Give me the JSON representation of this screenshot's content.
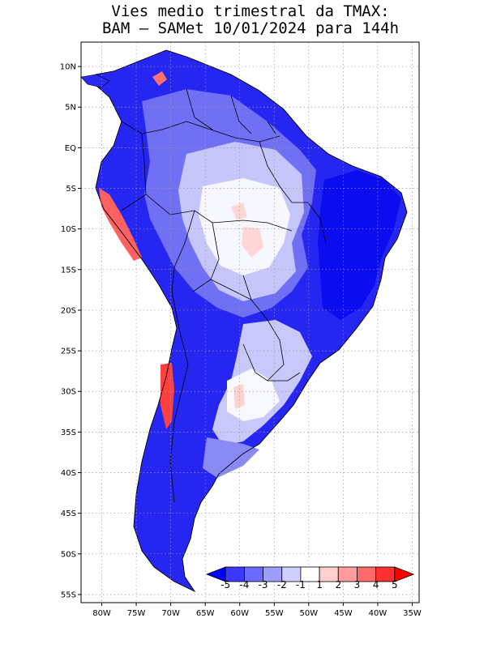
{
  "title": {
    "line1": "Vies medio trimestral da TMAX:",
    "line2": "BAM – SAMet 10/01/2024  para 144h"
  },
  "map": {
    "region": "South America",
    "projection": "lon-lat",
    "lon_range": [
      -83,
      -34
    ],
    "lat_range": [
      -56,
      13
    ],
    "lat_ticks": [
      {
        "value": 10,
        "label": "10N"
      },
      {
        "value": 5,
        "label": "5N"
      },
      {
        "value": 0,
        "label": "EQ"
      },
      {
        "value": -5,
        "label": "5S"
      },
      {
        "value": -10,
        "label": "10S"
      },
      {
        "value": -15,
        "label": "15S"
      },
      {
        "value": -20,
        "label": "20S"
      },
      {
        "value": -25,
        "label": "25S"
      },
      {
        "value": -30,
        "label": "30S"
      },
      {
        "value": -35,
        "label": "35S"
      },
      {
        "value": -40,
        "label": "40S"
      },
      {
        "value": -45,
        "label": "45S"
      },
      {
        "value": -50,
        "label": "50S"
      },
      {
        "value": -55,
        "label": "55S"
      }
    ],
    "lon_ticks": [
      {
        "value": -80,
        "label": "80W"
      },
      {
        "value": -75,
        "label": "75W"
      },
      {
        "value": -70,
        "label": "70W"
      },
      {
        "value": -65,
        "label": "65W"
      },
      {
        "value": -60,
        "label": "60W"
      },
      {
        "value": -55,
        "label": "55W"
      },
      {
        "value": -50,
        "label": "50W"
      },
      {
        "value": -45,
        "label": "45W"
      },
      {
        "value": -40,
        "label": "40W"
      },
      {
        "value": -35,
        "label": "35W"
      }
    ],
    "grid": true
  },
  "colorbar": {
    "labels": [
      "-5",
      "-4",
      "-3",
      "-2",
      "-1",
      "1",
      "2",
      "3",
      "4",
      "5"
    ],
    "colors": [
      "#0000ff",
      "#3a3aff",
      "#6b6bff",
      "#9d9dff",
      "#d0d0ff",
      "#ffffff",
      "#ffcfcf",
      "#ff9d9d",
      "#ff6b6b",
      "#ff3030",
      "#ff0000"
    ]
  },
  "fill": {
    "strong_cool": "#1e1ef5",
    "cool": "#5a5af5",
    "mild_cool": "#9c9cf2",
    "light_cool": "#d4d4fa",
    "warm_light": "#ffd2d2",
    "warm": "#ff5050"
  }
}
